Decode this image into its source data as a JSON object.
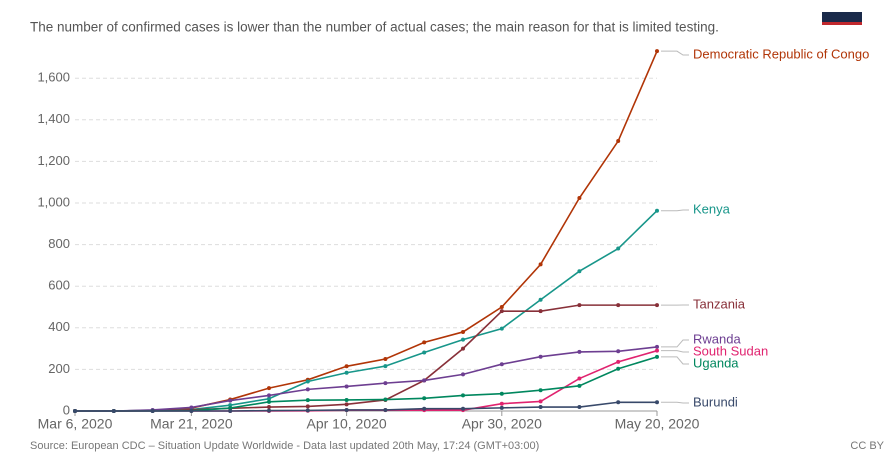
{
  "chart_data": {
    "type": "line",
    "title": "The number of confirmed cases is lower than the number of actual cases; the main reason for that is limited testing.",
    "source": "Source: European CDC – Situation Update Worldwide - Data last updated 20th May, 17:24 (GMT+03:00)",
    "license": "CC BY",
    "x": [
      "2020-03-06",
      "2020-03-11",
      "2020-03-16",
      "2020-03-21",
      "2020-03-26",
      "2020-03-31",
      "2020-04-05",
      "2020-04-10",
      "2020-04-15",
      "2020-04-20",
      "2020-04-25",
      "2020-04-30",
      "2020-05-05",
      "2020-05-10",
      "2020-05-15",
      "2020-05-20"
    ],
    "xlim": [
      "2020-03-06",
      "2020-05-20"
    ],
    "xticks": [
      {
        "value": "2020-03-06",
        "label": "Mar 6, 2020"
      },
      {
        "value": "2020-03-21",
        "label": "Mar 21, 2020"
      },
      {
        "value": "2020-04-10",
        "label": "Apr 10, 2020"
      },
      {
        "value": "2020-04-30",
        "label": "Apr 30, 2020"
      },
      {
        "value": "2020-05-20",
        "label": "May 20, 2020"
      }
    ],
    "ylim": [
      0,
      1750
    ],
    "yticks": [
      0,
      200,
      400,
      600,
      800,
      {
        "value": 1000,
        "label": "1,000"
      },
      {
        "value": 1200,
        "label": "1,200"
      },
      {
        "value": 1400,
        "label": "1,400"
      },
      {
        "value": 1600,
        "label": "1,600"
      }
    ],
    "grid": true,
    "series": [
      {
        "name": "Democratic Republic of Congo",
        "color": "#b13507",
        "values": [
          0,
          0,
          2,
          14,
          55,
          110,
          150,
          215,
          250,
          330,
          380,
          500,
          705,
          1024,
          1298,
          1730
        ]
      },
      {
        "name": "Kenya",
        "color": "#18968a",
        "values": [
          0,
          0,
          3,
          7,
          28,
          59,
          142,
          184,
          216,
          281,
          343,
          396,
          535,
          672,
          781,
          963
        ]
      },
      {
        "name": "Tanzania",
        "color": "#883039",
        "values": [
          0,
          0,
          1,
          6,
          13,
          19,
          22,
          32,
          53,
          147,
          300,
          480,
          480,
          509,
          509,
          509
        ]
      },
      {
        "name": "Rwanda",
        "color": "#6d3e91",
        "values": [
          0,
          0,
          5,
          17,
          50,
          75,
          104,
          118,
          134,
          147,
          176,
          225,
          261,
          284,
          287,
          308
        ]
      },
      {
        "name": "South Sudan",
        "color": "#e0236f",
        "values": [
          0,
          0,
          0,
          0,
          0,
          0,
          1,
          4,
          4,
          4,
          4,
          35,
          46,
          156,
          236,
          290
        ]
      },
      {
        "name": "Uganda",
        "color": "#00875e",
        "values": [
          0,
          0,
          0,
          1,
          14,
          44,
          52,
          53,
          55,
          61,
          75,
          83,
          100,
          121,
          203,
          260
        ]
      },
      {
        "name": "Burundi",
        "color": "#38496a",
        "values": [
          0,
          0,
          0,
          0,
          0,
          2,
          3,
          5,
          5,
          11,
          11,
          15,
          19,
          19,
          42,
          42
        ]
      }
    ]
  }
}
